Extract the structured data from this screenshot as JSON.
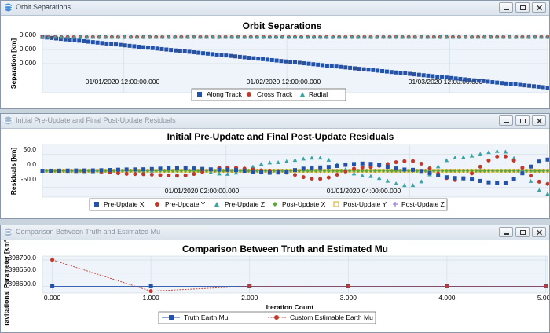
{
  "windows": [
    {
      "title": "Orbit Separations",
      "chart_data": {
        "type": "scatter",
        "title": "Orbit Separations",
        "xlabel": "",
        "ylabel": "Separation [km]",
        "ytick_labels": [
          "0.000",
          "0.000",
          "0.000"
        ],
        "xtick_labels": [
          "01/01/2020 12:00:00.000",
          "01/02/2020 12:00:00.000",
          "01/03/2020 12:00:00.000"
        ],
        "x_unit": "days since 01/01/2020 00:00",
        "xlim": [
          0.0,
          3.1
        ],
        "ylim": [
          -1.1,
          0.05
        ],
        "series": [
          {
            "name": "Along Track",
            "x": [
              0.0,
              3.1
            ],
            "y": [
              0.0,
              -1.0
            ]
          },
          {
            "name": "Cross Track",
            "x": [
              0.0,
              3.1
            ],
            "y": [
              0.0,
              0.0
            ]
          },
          {
            "name": "Radial",
            "x": [
              0.0,
              3.1
            ],
            "y": [
              0.0,
              0.0
            ]
          }
        ]
      }
    },
    {
      "title": "Initial Pre-Update and Final Post-Update Residuals",
      "chart_data": {
        "type": "scatter",
        "title": "Initial Pre-Update and Final Post-Update Residuals",
        "xlabel": "",
        "ylabel": "Residuals [km]",
        "yticks": [
          50.0,
          0.0,
          -50.0
        ],
        "ytick_labels": [
          "50.0",
          "0.0",
          "-50.0"
        ],
        "xtick_labels": [
          "01/01/2020 02:00:00.000",
          "01/01/2020 04:00:00.000"
        ],
        "x_unit": "hours",
        "xlim": [
          0.0,
          5.5
        ],
        "ylim": [
          -80,
          80
        ],
        "x": [
          0.0,
          0.5,
          1.0,
          1.5,
          2.0,
          2.5,
          3.0,
          3.5,
          4.0,
          4.5,
          5.0,
          5.5
        ],
        "series": [
          {
            "name": "Pre-Update X",
            "y": [
              0,
              1,
              4,
              8,
              3,
              -6,
              10,
              22,
              3,
              -22,
              -38,
              34
            ]
          },
          {
            "name": "Pre-Update Y",
            "y": [
              0,
              -1,
              -10,
              -15,
              10,
              0,
              -25,
              10,
              30,
              -28,
              45,
              -40
            ]
          },
          {
            "name": "Pre-Update Z",
            "y": [
              0,
              -2,
              -5,
              10,
              -10,
              25,
              40,
              -15,
              -45,
              40,
              60,
              -70
            ]
          },
          {
            "name": "Post-Update X",
            "y": [
              0,
              0,
              0,
              0,
              0,
              0,
              0,
              0,
              0,
              0,
              0,
              0
            ]
          },
          {
            "name": "Post-Update Y",
            "y": [
              0,
              0,
              0,
              0,
              0,
              0,
              0,
              0,
              0,
              0,
              0,
              0
            ]
          },
          {
            "name": "Post-Update Z",
            "y": [
              0,
              0,
              0,
              0,
              0,
              0,
              0,
              0,
              0,
              0,
              0,
              0
            ]
          }
        ]
      }
    },
    {
      "title": "Comparison Between Truth and Estimated Mu",
      "chart_data": {
        "type": "line",
        "title": "Comparison Between Truth and Estimated Mu",
        "xlabel": "Iteration Count",
        "ylabel": "ravitational Parameter [km³",
        "xticks": [
          0.0,
          1.0,
          2.0,
          3.0,
          4.0,
          5.0
        ],
        "xtick_labels": [
          "0.000",
          "1.000",
          "2.000",
          "3.000",
          "4.000",
          "5.000"
        ],
        "yticks": [
          398600.0,
          398650.0,
          398700.0
        ],
        "ytick_labels": [
          "398600.0",
          "398650.0",
          "398700.0"
        ],
        "xlim": [
          -0.1,
          5.02
        ],
        "ylim": [
          398575,
          398715
        ],
        "series": [
          {
            "name": "Truth Earth Mu",
            "x": [
              0,
              1,
              2,
              3,
              4,
              5
            ],
            "y": [
              398600.4,
              398600.4,
              398600.4,
              398600.4,
              398600.4,
              398600.4
            ]
          },
          {
            "name": "Custom Estimable Earth Mu",
            "x": [
              0,
              1,
              2,
              3,
              4,
              5
            ],
            "y": [
              398700.4,
              398582.0,
              398600.6,
              398600.4,
              398600.4,
              398600.4
            ]
          }
        ]
      }
    }
  ],
  "colors": {
    "blue": "#2452a8",
    "red": "#c0392b",
    "teal": "#3aa3a6",
    "green": "#5aa833",
    "yellow": "#e0bb45",
    "purple": "#9b7fcf"
  },
  "icons": [
    "app-chart-icon",
    "minimize-icon",
    "restore-icon",
    "close-icon"
  ]
}
